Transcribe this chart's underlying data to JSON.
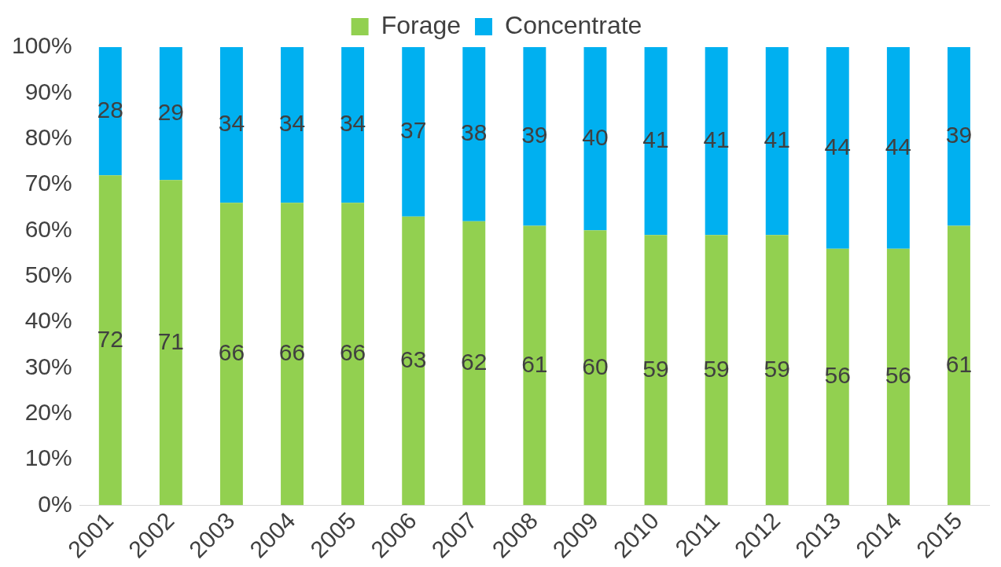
{
  "chart_data": {
    "type": "bar",
    "stacked": true,
    "legend": "top",
    "data_labels": true,
    "grid": false,
    "categories": [
      "2001",
      "2002",
      "2003",
      "2004",
      "2005",
      "2006",
      "2007",
      "2008",
      "2009",
      "2010",
      "2011",
      "2012",
      "2013",
      "2014",
      "2015"
    ],
    "series": [
      {
        "name": "Forage",
        "color": "#92d050",
        "values": [
          72,
          71,
          66,
          66,
          66,
          63,
          62,
          61,
          60,
          59,
          59,
          59,
          56,
          56,
          61
        ]
      },
      {
        "name": "Concentrate",
        "color": "#00b0f0",
        "values": [
          28,
          29,
          34,
          34,
          34,
          37,
          38,
          39,
          40,
          41,
          41,
          41,
          44,
          44,
          39
        ]
      }
    ],
    "ylim": [
      0,
      100
    ],
    "yticks": [
      {
        "value": 0,
        "label": "0%"
      },
      {
        "value": 10,
        "label": "10%"
      },
      {
        "value": 20,
        "label": "20%"
      },
      {
        "value": 30,
        "label": "30%"
      },
      {
        "value": 40,
        "label": "40%"
      },
      {
        "value": 50,
        "label": "50%"
      },
      {
        "value": 60,
        "label": "60%"
      },
      {
        "value": 70,
        "label": "70%"
      },
      {
        "value": 80,
        "label": "80%"
      },
      {
        "value": 90,
        "label": "90%"
      },
      {
        "value": 100,
        "label": "100%"
      }
    ]
  }
}
